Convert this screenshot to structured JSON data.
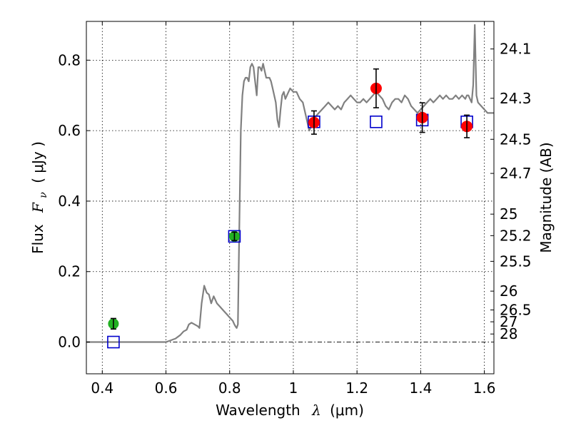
{
  "chart_data": {
    "type": "scatter",
    "xlabel_text": "Wavelength",
    "xlabel_math": "λ",
    "xlabel_unit": "(μm)",
    "ylabel_text": "Flux",
    "ylabel_math": "F",
    "ylabel_math_sub": "ν",
    "ylabel_unit": "( μJy )",
    "y2label": "Magnitude (AB)",
    "xlim": [
      0.35,
      1.63
    ],
    "ylim": [
      -0.09,
      0.91
    ],
    "grid": true,
    "x_ticks": [
      {
        "value": 0.4,
        "label": "0.4"
      },
      {
        "value": 0.6,
        "label": "0.6"
      },
      {
        "value": 0.8,
        "label": "0.8"
      },
      {
        "value": 1.0,
        "label": "1"
      },
      {
        "value": 1.2,
        "label": "1.2"
      },
      {
        "value": 1.4,
        "label": "1.4"
      },
      {
        "value": 1.6,
        "label": "1.6"
      }
    ],
    "y_ticks": [
      {
        "value": 0.0,
        "label": "0.0"
      },
      {
        "value": 0.2,
        "label": "0.2"
      },
      {
        "value": 0.4,
        "label": "0.4"
      },
      {
        "value": 0.6,
        "label": "0.6"
      },
      {
        "value": 0.8,
        "label": "0.8"
      }
    ],
    "y2_ticks": [
      {
        "value": 24.1,
        "label": "24.1"
      },
      {
        "value": 24.3,
        "label": "24.3"
      },
      {
        "value": 24.5,
        "label": "24.5"
      },
      {
        "value": 24.7,
        "label": "24.7"
      },
      {
        "value": 25,
        "label": "25"
      },
      {
        "value": 25.2,
        "label": "25.2"
      },
      {
        "value": 25.5,
        "label": "25.5"
      },
      {
        "value": 26,
        "label": "26"
      },
      {
        "value": 26.5,
        "label": "26.5"
      },
      {
        "value": 27,
        "label": "27"
      },
      {
        "value": 28,
        "label": "28"
      }
    ],
    "zero_line": true,
    "colors": {
      "model": "#808080",
      "upper_limit": "#22b022",
      "detection": "#ff0000",
      "model_flux": "#0000cc",
      "errorbar": "#000000"
    },
    "series": [
      {
        "type": "line",
        "x": [
          0.35,
          0.6,
          0.615,
          0.63,
          0.645,
          0.655,
          0.665,
          0.672,
          0.68,
          0.69,
          0.7,
          0.705,
          0.712,
          0.72,
          0.728,
          0.735,
          0.742,
          0.75,
          0.76,
          0.77,
          0.78,
          0.79,
          0.8,
          0.81,
          0.815,
          0.818,
          0.822,
          0.826,
          0.83,
          0.835,
          0.84,
          0.845,
          0.85,
          0.855,
          0.86,
          0.865,
          0.87,
          0.875,
          0.88,
          0.885,
          0.89,
          0.895,
          0.9,
          0.905,
          0.91,
          0.915,
          0.92,
          0.925,
          0.93,
          0.935,
          0.94,
          0.945,
          0.95,
          0.955,
          0.96,
          0.965,
          0.97,
          0.975,
          0.98,
          0.99,
          1.0,
          1.01,
          1.02,
          1.03,
          1.04,
          1.045,
          1.05,
          1.055,
          1.06,
          1.065,
          1.07,
          1.08,
          1.09,
          1.1,
          1.11,
          1.12,
          1.13,
          1.14,
          1.15,
          1.16,
          1.17,
          1.18,
          1.19,
          1.2,
          1.21,
          1.22,
          1.23,
          1.24,
          1.25,
          1.26,
          1.27,
          1.28,
          1.29,
          1.3,
          1.31,
          1.32,
          1.33,
          1.34,
          1.35,
          1.36,
          1.37,
          1.38,
          1.39,
          1.4,
          1.41,
          1.42,
          1.43,
          1.44,
          1.45,
          1.46,
          1.47,
          1.48,
          1.49,
          1.5,
          1.51,
          1.52,
          1.53,
          1.54,
          1.545,
          1.55,
          1.555,
          1.56,
          1.565,
          1.57,
          1.575,
          1.58,
          1.59,
          1.6,
          1.61,
          1.63
        ],
        "y": [
          0.0,
          0.0,
          0.005,
          0.01,
          0.02,
          0.03,
          0.035,
          0.05,
          0.055,
          0.05,
          0.045,
          0.04,
          0.11,
          0.16,
          0.14,
          0.135,
          0.11,
          0.13,
          0.11,
          0.1,
          0.09,
          0.08,
          0.07,
          0.06,
          0.05,
          0.045,
          0.04,
          0.05,
          0.3,
          0.6,
          0.7,
          0.74,
          0.75,
          0.75,
          0.74,
          0.78,
          0.79,
          0.78,
          0.74,
          0.7,
          0.78,
          0.78,
          0.77,
          0.79,
          0.77,
          0.75,
          0.75,
          0.75,
          0.74,
          0.72,
          0.7,
          0.68,
          0.63,
          0.61,
          0.66,
          0.7,
          0.71,
          0.69,
          0.7,
          0.72,
          0.71,
          0.71,
          0.69,
          0.68,
          0.64,
          0.62,
          0.6,
          0.61,
          0.62,
          0.64,
          0.64,
          0.65,
          0.66,
          0.67,
          0.68,
          0.67,
          0.66,
          0.67,
          0.66,
          0.68,
          0.69,
          0.7,
          0.69,
          0.68,
          0.68,
          0.69,
          0.68,
          0.69,
          0.7,
          0.71,
          0.7,
          0.69,
          0.67,
          0.66,
          0.68,
          0.69,
          0.69,
          0.68,
          0.7,
          0.69,
          0.67,
          0.66,
          0.65,
          0.66,
          0.67,
          0.68,
          0.69,
          0.68,
          0.69,
          0.7,
          0.69,
          0.7,
          0.69,
          0.69,
          0.7,
          0.69,
          0.7,
          0.69,
          0.7,
          0.7,
          0.69,
          0.68,
          0.73,
          0.9,
          0.7,
          0.68,
          0.67,
          0.66,
          0.65,
          0.65
        ]
      },
      {
        "type": "scatter",
        "marker": "circle",
        "x": [
          0.435,
          0.815
        ],
        "y": [
          0.052,
          0.3
        ],
        "yerr": [
          0.015,
          0.012
        ]
      },
      {
        "type": "scatter",
        "marker": "circle",
        "x": [
          1.065,
          1.26,
          1.405,
          1.545
        ],
        "y": [
          0.623,
          0.72,
          0.637,
          0.612
        ],
        "yerr": [
          0.033,
          0.055,
          0.042,
          0.032
        ]
      },
      {
        "type": "scatter",
        "marker": "open-square",
        "x": [
          0.435,
          0.815,
          1.065,
          1.26,
          1.405,
          1.545
        ],
        "y": [
          0.0,
          0.3,
          0.625,
          0.625,
          0.63,
          0.625
        ]
      }
    ]
  }
}
